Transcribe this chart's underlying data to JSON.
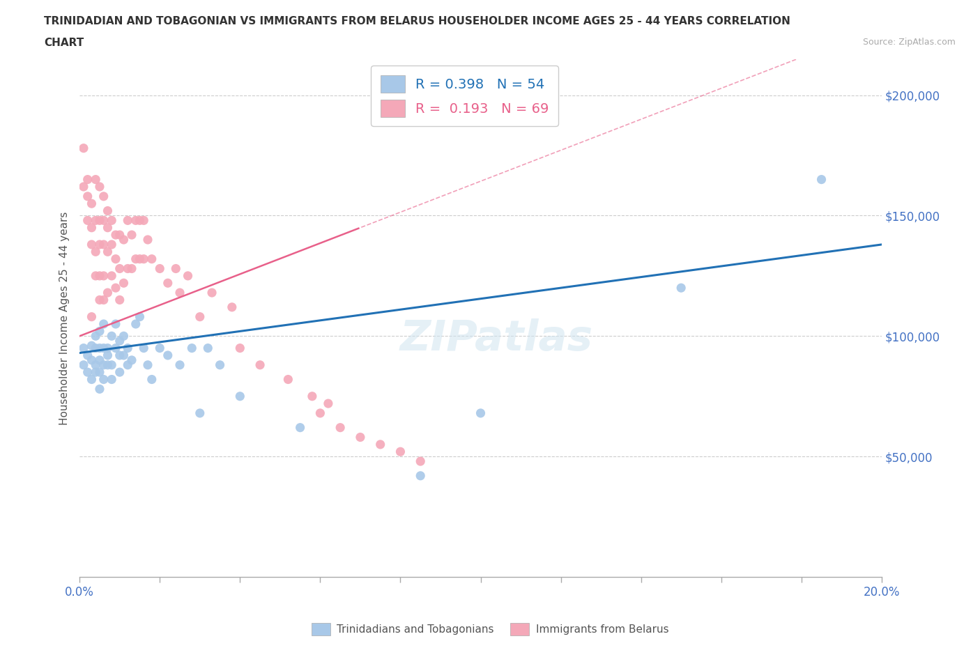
{
  "title_line1": "TRINIDADIAN AND TOBAGONIAN VS IMMIGRANTS FROM BELARUS HOUSEHOLDER INCOME AGES 25 - 44 YEARS CORRELATION",
  "title_line2": "CHART",
  "source": "Source: ZipAtlas.com",
  "ylabel": "Householder Income Ages 25 - 44 years",
  "blue_label": "Trinidadians and Tobagonians",
  "pink_label": "Immigrants from Belarus",
  "blue_R": 0.398,
  "blue_N": 54,
  "pink_R": 0.193,
  "pink_N": 69,
  "blue_color": "#a8c8e8",
  "pink_color": "#f4a8b8",
  "blue_line_color": "#2171b5",
  "pink_line_color": "#e8608a",
  "watermark": "ZIPatlas",
  "blue_x": [
    0.001,
    0.001,
    0.002,
    0.002,
    0.003,
    0.003,
    0.003,
    0.004,
    0.004,
    0.004,
    0.004,
    0.005,
    0.005,
    0.005,
    0.005,
    0.005,
    0.006,
    0.006,
    0.006,
    0.006,
    0.007,
    0.007,
    0.007,
    0.008,
    0.008,
    0.008,
    0.009,
    0.009,
    0.01,
    0.01,
    0.01,
    0.011,
    0.011,
    0.012,
    0.012,
    0.013,
    0.014,
    0.015,
    0.016,
    0.017,
    0.018,
    0.02,
    0.022,
    0.025,
    0.028,
    0.03,
    0.032,
    0.035,
    0.04,
    0.055,
    0.085,
    0.1,
    0.15,
    0.185
  ],
  "blue_y": [
    95000,
    88000,
    92000,
    85000,
    90000,
    82000,
    96000,
    88000,
    95000,
    85000,
    100000,
    90000,
    85000,
    95000,
    78000,
    102000,
    88000,
    82000,
    95000,
    105000,
    92000,
    88000,
    95000,
    100000,
    88000,
    82000,
    95000,
    105000,
    92000,
    85000,
    98000,
    92000,
    100000,
    88000,
    95000,
    90000,
    105000,
    108000,
    95000,
    88000,
    82000,
    95000,
    92000,
    88000,
    95000,
    68000,
    95000,
    88000,
    75000,
    62000,
    42000,
    68000,
    120000,
    165000
  ],
  "pink_x": [
    0.001,
    0.001,
    0.002,
    0.002,
    0.002,
    0.003,
    0.003,
    0.003,
    0.003,
    0.004,
    0.004,
    0.004,
    0.004,
    0.005,
    0.005,
    0.005,
    0.005,
    0.005,
    0.006,
    0.006,
    0.006,
    0.006,
    0.006,
    0.007,
    0.007,
    0.007,
    0.007,
    0.008,
    0.008,
    0.008,
    0.009,
    0.009,
    0.009,
    0.01,
    0.01,
    0.01,
    0.011,
    0.011,
    0.012,
    0.012,
    0.013,
    0.013,
    0.014,
    0.014,
    0.015,
    0.015,
    0.016,
    0.016,
    0.017,
    0.018,
    0.02,
    0.022,
    0.024,
    0.025,
    0.027,
    0.03,
    0.033,
    0.038,
    0.04,
    0.045,
    0.052,
    0.058,
    0.06,
    0.062,
    0.065,
    0.07,
    0.075,
    0.08,
    0.085
  ],
  "pink_y": [
    178000,
    162000,
    165000,
    148000,
    158000,
    155000,
    138000,
    108000,
    145000,
    165000,
    148000,
    135000,
    125000,
    162000,
    148000,
    138000,
    125000,
    115000,
    158000,
    148000,
    138000,
    125000,
    115000,
    152000,
    145000,
    135000,
    118000,
    148000,
    138000,
    125000,
    142000,
    132000,
    120000,
    142000,
    128000,
    115000,
    140000,
    122000,
    148000,
    128000,
    142000,
    128000,
    148000,
    132000,
    148000,
    132000,
    148000,
    132000,
    140000,
    132000,
    128000,
    122000,
    128000,
    118000,
    125000,
    108000,
    118000,
    112000,
    95000,
    88000,
    82000,
    75000,
    68000,
    72000,
    62000,
    58000,
    55000,
    52000,
    48000
  ]
}
